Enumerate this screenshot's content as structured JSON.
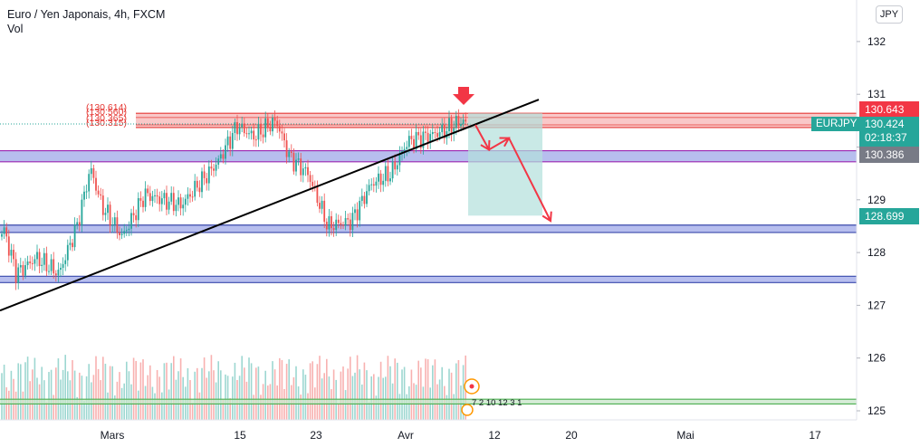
{
  "header": {
    "title": "Euro / Yen Japonais, 4h, FXCM",
    "indicator": "Vol",
    "currency": "JPY"
  },
  "price_tags": {
    "last_high": "130.643",
    "symbol": "EURJPY",
    "current": "130.424",
    "countdown": "02:18:37",
    "level": "130.386",
    "target": "128.699"
  },
  "zone_labels": [
    "(130.614)",
    "(130.560)",
    "(130.365)",
    "(130.315)"
  ],
  "volume_markers": "7 2 10 12 3 1",
  "colors": {
    "up": "#26a69a",
    "down": "#ef5350",
    "resistance_fill": "#f7b6b6",
    "support_fill": "#9fa8e8",
    "support_edge": "#9c27b0",
    "green_zone": "#4caf50",
    "trendline": "#000000",
    "arrow": "#f23645",
    "target_box": "#b2dfdb"
  },
  "chart_data": {
    "type": "candlestick",
    "title": "Euro / Yen Japonais, 4h, FXCM",
    "y_axis": {
      "min": 125,
      "max": 132,
      "ticks": [
        125,
        126,
        127,
        128,
        129,
        130,
        131,
        132
      ]
    },
    "x_axis": {
      "ticks": [
        "Mars",
        "15",
        "23",
        "Avr",
        "12",
        "20",
        "Mai",
        "17"
      ]
    },
    "levels": {
      "resistance_zone": [
        130.37,
        130.64
      ],
      "support_zone_1": [
        129.72,
        129.93
      ],
      "support_zone_2": [
        128.38,
        128.52
      ],
      "support_zone_3": [
        127.43,
        127.55
      ],
      "volume_zone": [
        125.13,
        125.22
      ]
    },
    "trendline": {
      "from": [
        0,
        126.9
      ],
      "to": [
        595,
        130.9
      ]
    },
    "projection_box": {
      "from_price": 130.64,
      "to_price": 128.7
    },
    "projection_path": [
      130.42,
      129.95,
      130.17,
      128.6
    ],
    "grid": false,
    "legend": "top-left"
  }
}
